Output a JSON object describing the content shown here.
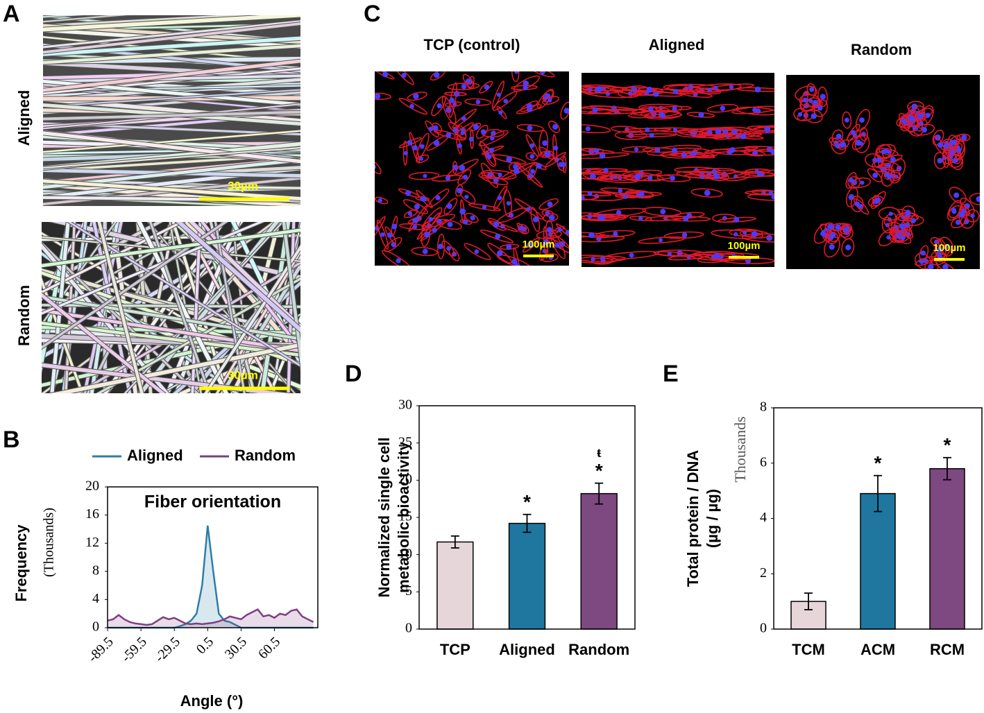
{
  "panel_labels": [
    "A",
    "B",
    "C",
    "D",
    "E"
  ],
  "panel_a": {
    "row_labels": [
      "Aligned",
      "Random"
    ],
    "scale_bar": "30µm"
  },
  "panel_c": {
    "column_titles": [
      "TCP (control)",
      "Aligned",
      "Random"
    ],
    "scale_bar": "100µm"
  },
  "chart_data": [
    {
      "type": "area",
      "title": "Fiber orientation",
      "x_label": "Angle (°)",
      "y_label": "Frequency",
      "y_unit_label": "(Thousands)",
      "x": [
        -89.5,
        -84.5,
        -79.5,
        -74.5,
        -69.5,
        -64.5,
        -59.5,
        -54.5,
        -49.5,
        -44.5,
        -39.5,
        -34.5,
        -29.5,
        -24.5,
        -19.5,
        -14.5,
        -9.5,
        -4.5,
        0.5,
        5.5,
        10.5,
        15.5,
        20.5,
        25.5,
        30.5,
        35.5,
        40.5,
        45.5,
        50.5,
        55.5,
        60.5,
        65.5,
        70.5,
        75.5,
        80.5,
        85.5,
        90.5,
        95.5
      ],
      "series": [
        {
          "name": "Aligned",
          "color": "#2b7ea8",
          "values": [
            0,
            0,
            0,
            0,
            0,
            0,
            0,
            0,
            0,
            0,
            0,
            0,
            0,
            0.2,
            0.5,
            1,
            2,
            6,
            14.5,
            8,
            2,
            1,
            0.8,
            0.4,
            0,
            0,
            0,
            0,
            0,
            0,
            0,
            0,
            0,
            0,
            0,
            0,
            0,
            0
          ]
        },
        {
          "name": "Random",
          "color": "#7d3f80",
          "values": [
            1,
            1.2,
            1.8,
            1.2,
            0.8,
            0.6,
            0.5,
            0.4,
            0.5,
            1,
            1.5,
            1.2,
            1.4,
            1,
            0.6,
            0.5,
            0.6,
            0.5,
            0.6,
            0.7,
            0.9,
            1.2,
            1.6,
            1.4,
            1.2,
            1.8,
            2.2,
            2.6,
            1.6,
            1.8,
            1.4,
            2,
            1.8,
            2.4,
            2.6,
            1.6,
            1.2,
            0.8
          ]
        }
      ],
      "xlim": [
        -89.5,
        99.5
      ],
      "xticks": [
        -89.5,
        -59.5,
        -29.5,
        0.5,
        30.5,
        60.5
      ],
      "ylim": [
        0,
        20
      ],
      "yticks": [
        0,
        4,
        8,
        12,
        16,
        20
      ],
      "legend": "top"
    },
    {
      "type": "bar",
      "y_label": [
        "Normalized single cell",
        "metabolic bioactivity"
      ],
      "categories": [
        "TCP",
        "Aligned",
        "Random"
      ],
      "values": [
        11.7,
        14.2,
        18.2
      ],
      "errors": [
        0.8,
        1.2,
        1.4
      ],
      "colors": [
        "#e6d6da",
        "#1f77a0",
        "#7e4880"
      ],
      "markers": [
        null,
        "*",
        "*"
      ],
      "markers_top": [
        null,
        null,
        "ŧ"
      ],
      "ylim": [
        0,
        30
      ],
      "yticks": [
        0,
        5,
        10,
        15,
        20,
        25,
        30
      ]
    },
    {
      "type": "bar",
      "y_label": [
        "Total protein / DNA",
        "(µg / µg)"
      ],
      "y_unit_label": "Thousands",
      "categories": [
        "TCM",
        "ACM",
        "RCM"
      ],
      "values": [
        1.0,
        4.9,
        5.8
      ],
      "errors": [
        0.3,
        0.65,
        0.4
      ],
      "colors": [
        "#e6d6da",
        "#1f77a0",
        "#7e4880"
      ],
      "markers": [
        null,
        "*",
        "*"
      ],
      "ylim": [
        0,
        8
      ],
      "yticks": [
        0,
        2,
        4,
        6,
        8
      ]
    }
  ]
}
